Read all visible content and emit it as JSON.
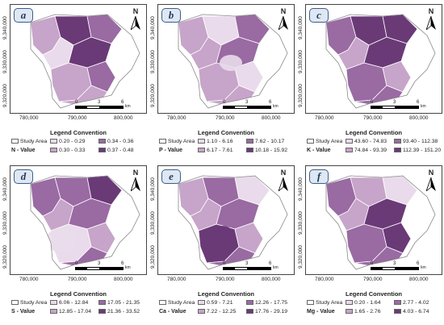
{
  "common": {
    "north_letter": "N",
    "legend_title": "Legend Convention",
    "study_area": "Study Area",
    "y_ticks": [
      "9,340,000",
      "9,330,000",
      "9,320,000"
    ],
    "x_ticks": [
      "780,000",
      "790,000",
      "800,000"
    ],
    "scale_labels": [
      "0",
      "3",
      "6"
    ],
    "scale_unit": "km"
  },
  "panels": [
    {
      "letter": "a",
      "value_label": "N - Value",
      "classes": [
        "0.20 - 0.29",
        "0.30 - 0.33",
        "0.34 - 0.36",
        "0.37 - 0.48"
      ],
      "colors": [
        "#e9dbeb",
        "#c7a4c9",
        "#9a6aa3",
        "#6a3a77"
      ]
    },
    {
      "letter": "b",
      "value_label": "P - Value",
      "classes": [
        "1.10 - 6.16",
        "6.17 - 7.61",
        "7.62 - 10.17",
        "10.18 - 15.92"
      ],
      "colors": [
        "#e9dbeb",
        "#c7a4c9",
        "#9a6aa3",
        "#6a3a77"
      ]
    },
    {
      "letter": "c",
      "value_label": "K - Value",
      "classes": [
        "43.60 - 74.83",
        "74.84 - 93.39",
        "93.40 - 112.38",
        "112.39 - 151.20"
      ],
      "colors": [
        "#e9dbeb",
        "#c7a4c9",
        "#9a6aa3",
        "#6a3a77"
      ]
    },
    {
      "letter": "d",
      "value_label": "S - Value",
      "classes": [
        "6.06 - 12.84",
        "12.85 - 17.04",
        "17.05 - 21.35",
        "21.36 - 33.52"
      ],
      "colors": [
        "#e9dbeb",
        "#c7a4c9",
        "#9a6aa3",
        "#6a3a77"
      ]
    },
    {
      "letter": "e",
      "value_label": "Ca - Value",
      "classes": [
        "0.59 - 7.21",
        "7.22 - 12.25",
        "12.26 - 17.75",
        "17.76 - 29.19"
      ],
      "colors": [
        "#e9dbeb",
        "#c7a4c9",
        "#9a6aa3",
        "#6a3a77"
      ]
    },
    {
      "letter": "f",
      "value_label": "Mg - Value",
      "classes": [
        "0.20 - 1.64",
        "1.65 - 2.76",
        "2.77 - 4.02",
        "4.03 - 6.74"
      ],
      "colors": [
        "#e9dbeb",
        "#c7a4c9",
        "#9a6aa3",
        "#6a3a77"
      ]
    }
  ]
}
